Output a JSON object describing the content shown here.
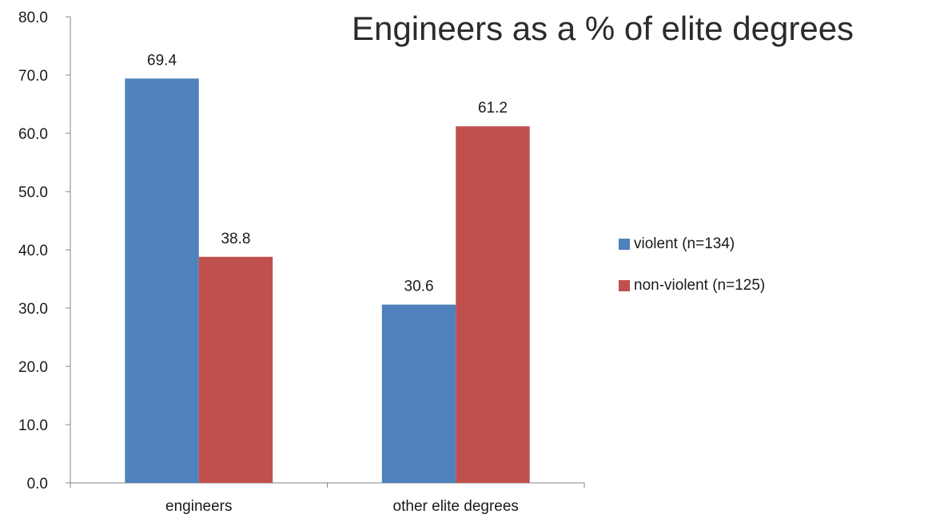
{
  "chart_data": {
    "type": "bar",
    "title": "Engineers as a % of elite degrees",
    "categories": [
      "engineers",
      "other elite degrees"
    ],
    "series": [
      {
        "name": "violent (n=134)",
        "values": [
          69.4,
          30.6
        ],
        "color": "#4f81bd"
      },
      {
        "name": "non-violent (n=125)",
        "values": [
          38.8,
          61.2
        ],
        "color": "#c0504d"
      }
    ],
    "ylim": [
      0,
      80
    ],
    "yticks": [
      "0.0",
      "10.0",
      "20.0",
      "30.0",
      "40.0",
      "50.0",
      "60.0",
      "70.0",
      "80.0"
    ],
    "data_labels": [
      [
        "69.4",
        "30.6"
      ],
      [
        "38.8",
        "61.2"
      ]
    ],
    "xlabel": "",
    "ylabel": "",
    "grid": false,
    "legend_position": "right"
  }
}
